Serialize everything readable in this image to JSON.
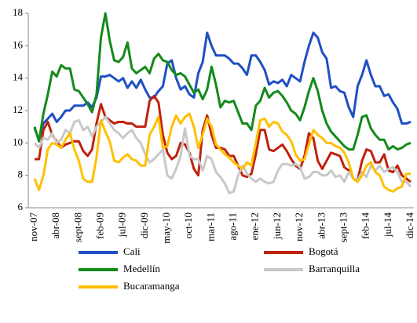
{
  "chart_data": {
    "type": "line",
    "categories": [
      "nov-07",
      null,
      null,
      null,
      null,
      "abr-08",
      null,
      null,
      null,
      null,
      "sept-08",
      null,
      null,
      null,
      null,
      "feb-09",
      null,
      null,
      null,
      null,
      "jul-09",
      null,
      null,
      null,
      null,
      "dic-09",
      null,
      null,
      null,
      null,
      "may-10",
      null,
      null,
      null,
      null,
      "oct-10",
      null,
      null,
      null,
      null,
      "mar-11",
      null,
      null,
      null,
      null,
      "ago-11",
      null,
      null,
      null,
      null,
      "ene-12",
      null,
      null,
      null,
      null,
      "jun-12",
      null,
      null,
      null,
      null,
      "nov-12",
      null,
      null,
      null,
      null,
      "abr-13",
      null,
      null,
      null,
      null,
      "sept-13",
      null,
      null,
      null,
      null,
      "feb-14",
      null,
      null,
      null,
      null,
      "jul-14",
      null,
      null,
      null,
      null,
      "dic-14"
    ],
    "series": [
      {
        "name": "Cali",
        "color": "#1f4fc4",
        "values": [
          10.9,
          10.2,
          11.2,
          11.5,
          11.8,
          11.3,
          11.6,
          12.0,
          12.0,
          12.3,
          12.3,
          12.3,
          12.5,
          12.2,
          12.8,
          14.1,
          14.1,
          14.2,
          14.0,
          13.8,
          14.0,
          13.4,
          13.8,
          13.4,
          13.9,
          13.3,
          12.8,
          12.8,
          13.2,
          13.5,
          14.9,
          15.1,
          14.0,
          13.3,
          13.5,
          13.0,
          12.8,
          14.3,
          15.0,
          16.8,
          16.0,
          15.4,
          15.4,
          15.4,
          15.2,
          14.9,
          14.9,
          14.6,
          14.2,
          15.4,
          15.4,
          15.0,
          14.5,
          13.6,
          13.8,
          13.7,
          13.9,
          13.5,
          14.2,
          14.0,
          13.8,
          15.0,
          16.0,
          16.8,
          16.5,
          15.6,
          15.2,
          13.4,
          13.5,
          13.2,
          13.1,
          12.2,
          11.6,
          13.5,
          14.2,
          15.1,
          14.2,
          13.5,
          13.5,
          12.9,
          13.0,
          12.5,
          12.1,
          11.2,
          11.2,
          11.3
        ]
      },
      {
        "name": "Bogotá",
        "color": "#c0210c",
        "values": [
          9.0,
          9.0,
          10.8,
          11.3,
          10.5,
          10.1,
          9.7,
          9.9,
          10.0,
          10.1,
          10.1,
          9.5,
          9.2,
          9.6,
          11.2,
          12.4,
          11.6,
          11.4,
          11.2,
          11.3,
          11.3,
          11.2,
          11.2,
          11.0,
          11.0,
          11.0,
          12.6,
          12.9,
          12.5,
          10.5,
          9.4,
          9.0,
          9.2,
          10.0,
          9.9,
          9.4,
          8.4,
          8.0,
          10.8,
          11.7,
          10.5,
          9.7,
          9.7,
          9.6,
          9.2,
          9.2,
          8.6,
          8.0,
          7.9,
          8.1,
          9.3,
          10.8,
          10.8,
          9.6,
          9.5,
          9.7,
          9.9,
          9.5,
          9.0,
          8.6,
          8.4,
          9.2,
          10.6,
          10.3,
          8.9,
          8.4,
          8.9,
          9.4,
          9.3,
          9.2,
          8.5,
          8.3,
          7.8,
          7.7,
          8.9,
          9.6,
          9.5,
          8.8,
          8.8,
          9.3,
          8.3,
          8.2,
          8.6,
          8.0,
          7.8,
          7.6
        ]
      },
      {
        "name": "Medellín",
        "color": "#138a1a",
        "values": [
          11.0,
          10.1,
          11.8,
          13.0,
          14.4,
          14.1,
          14.8,
          14.6,
          14.6,
          13.3,
          13.2,
          12.8,
          12.4,
          11.9,
          13.0,
          16.5,
          18.0,
          16.3,
          15.1,
          15.0,
          15.3,
          16.2,
          14.6,
          14.3,
          14.5,
          14.7,
          14.3,
          15.2,
          15.5,
          15.1,
          15.0,
          14.5,
          14.2,
          14.3,
          14.1,
          13.6,
          13.1,
          13.3,
          12.7,
          13.3,
          14.7,
          13.6,
          12.2,
          12.6,
          12.5,
          12.6,
          11.9,
          11.2,
          11.2,
          10.8,
          12.3,
          12.6,
          13.4,
          12.8,
          13.1,
          13.2,
          12.9,
          12.5,
          12.0,
          11.8,
          11.4,
          12.2,
          13.2,
          14.0,
          13.2,
          12.0,
          11.2,
          10.7,
          10.4,
          10.1,
          9.8,
          9.6,
          9.6,
          10.5,
          11.6,
          11.7,
          10.9,
          10.5,
          10.2,
          10.2,
          9.6,
          9.8,
          9.6,
          9.7,
          9.9,
          10.0
        ]
      },
      {
        "name": "Barranquilla",
        "color": "#c8c8c8",
        "values": [
          10.0,
          9.7,
          10.3,
          10.2,
          10.6,
          10.0,
          10.2,
          10.8,
          10.6,
          11.3,
          11.4,
          10.8,
          11.0,
          10.4,
          11.0,
          11.3,
          11.6,
          11.2,
          10.8,
          10.6,
          10.3,
          10.6,
          10.8,
          10.3,
          10.0,
          9.3,
          8.8,
          9.0,
          9.3,
          9.6,
          8.0,
          7.8,
          8.4,
          9.2,
          10.9,
          9.2,
          9.0,
          9.0,
          8.3,
          9.2,
          9.0,
          8.2,
          7.9,
          7.5,
          6.9,
          7.0,
          8.0,
          8.6,
          8.1,
          7.8,
          7.6,
          7.8,
          7.6,
          7.5,
          7.6,
          8.3,
          8.7,
          8.7,
          8.6,
          8.7,
          8.5,
          7.8,
          7.9,
          8.2,
          8.2,
          8.0,
          8.0,
          8.3,
          7.9,
          8.0,
          7.6,
          8.2,
          7.8,
          7.7,
          8.2,
          7.9,
          8.6,
          8.3,
          8.6,
          8.2,
          8.4,
          8.5,
          8.2,
          7.6,
          7.6,
          7.3
        ]
      },
      {
        "name": "Bucaramanga",
        "color": "#ffc000",
        "values": [
          7.8,
          7.1,
          8.0,
          9.6,
          10.0,
          9.9,
          9.7,
          10.2,
          10.6,
          9.6,
          8.9,
          7.8,
          7.6,
          7.6,
          9.1,
          11.4,
          10.7,
          10.1,
          8.9,
          8.8,
          9.1,
          9.3,
          9.0,
          8.9,
          8.6,
          8.6,
          10.5,
          11.0,
          11.6,
          9.7,
          9.8,
          11.0,
          11.7,
          11.2,
          11.6,
          11.8,
          11.0,
          9.7,
          10.5,
          11.5,
          11.0,
          9.9,
          9.6,
          9.3,
          9.1,
          8.8,
          8.6,
          8.4,
          8.8,
          8.6,
          10.0,
          11.4,
          11.5,
          11.0,
          11.3,
          11.2,
          10.7,
          10.5,
          10.1,
          9.3,
          8.9,
          9.0,
          9.9,
          10.8,
          10.5,
          10.3,
          10.0,
          10.0,
          9.8,
          9.7,
          9.4,
          8.8,
          7.8,
          7.6,
          8.0,
          8.6,
          8.8,
          8.2,
          8.0,
          7.3,
          7.1,
          7.0,
          7.2,
          7.3,
          8.1,
          8.1
        ]
      }
    ],
    "ylim": [
      6,
      18
    ],
    "yticks": [
      6,
      8,
      10,
      12,
      14,
      16,
      18
    ],
    "grid": false,
    "legend": "bottom"
  }
}
